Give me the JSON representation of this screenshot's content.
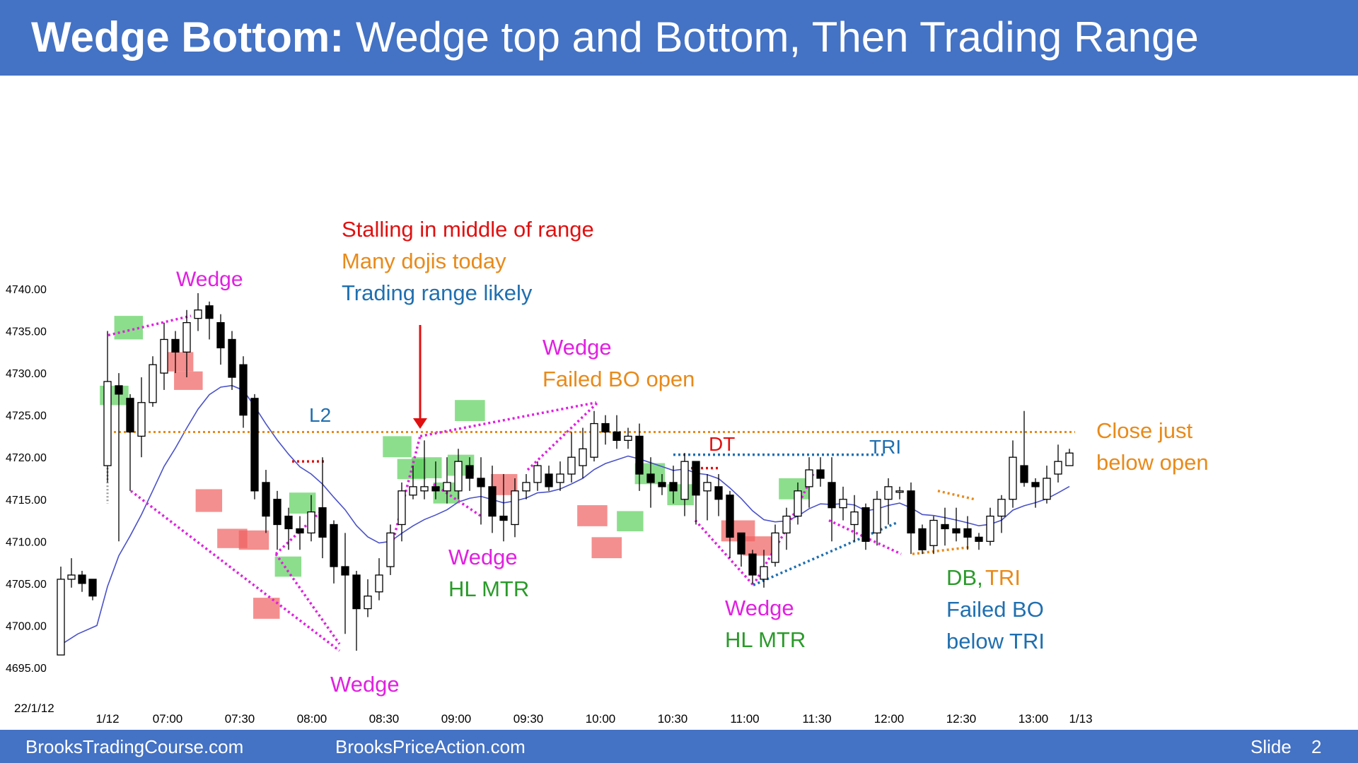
{
  "title": {
    "bold": "Wedge Bottom:",
    "rest": " Wedge top and Bottom, Then Trading Range"
  },
  "footer": {
    "left": "BrooksTradingCourse.com",
    "middle": "BrooksPriceAction.com",
    "slide_label": "Slide",
    "slide_number": "2"
  },
  "colors": {
    "banner": "#4472c4",
    "bull_highlight": "#5bd05b",
    "bear_highlight": "#f06060",
    "wedge": "#e020e0",
    "orange": "#e88a1a",
    "blue": "#1f6fb0",
    "ema": "#4a52c8"
  },
  "chart_data": {
    "type": "candlestick",
    "date_label": "22/1/12",
    "y_ticks": [
      "4740.00",
      "4735.00",
      "4730.00",
      "4725.00",
      "4720.00",
      "4715.00",
      "4710.00",
      "4705.00",
      "4700.00",
      "4695.00"
    ],
    "x_ticks": [
      {
        "label": "1/12",
        "bar": 0.5
      },
      {
        "label": "07:00",
        "bar": 6
      },
      {
        "label": "07:30",
        "bar": 12
      },
      {
        "label": "08:00",
        "bar": 18
      },
      {
        "label": "08:30",
        "bar": 24
      },
      {
        "label": "09:00",
        "bar": 30
      },
      {
        "label": "09:30",
        "bar": 36
      },
      {
        "label": "10:00",
        "bar": 42
      },
      {
        "label": "10:30",
        "bar": 48
      },
      {
        "label": "11:00",
        "bar": 54
      },
      {
        "label": "11:30",
        "bar": 60
      },
      {
        "label": "12:00",
        "bar": 66
      },
      {
        "label": "12:30",
        "bar": 72
      },
      {
        "label": "13:00",
        "bar": 78
      },
      {
        "label": "1/13",
        "bar": 82
      }
    ],
    "ylim": [
      4694,
      4743
    ],
    "open_price": 4723.0,
    "prior_day": [
      [
        4696.5,
        4705.5,
        4707,
        4696.5
      ],
      [
        4705.5,
        4706,
        4708,
        4704.5
      ],
      [
        4706,
        4705,
        4706.5,
        4704
      ],
      [
        4705.5,
        4703.5,
        4705.5,
        4703
      ]
    ],
    "bars": [
      [
        4719,
        4729,
        4735,
        4717
      ],
      [
        4728.5,
        4727.5,
        4730,
        4710
      ],
      [
        4727,
        4723,
        4727.5,
        4716
      ],
      [
        4722.5,
        4726.5,
        4729.5,
        4720
      ],
      [
        4726.5,
        4731,
        4732,
        4726
      ],
      [
        4730,
        4734,
        4736,
        4728
      ],
      [
        4734,
        4732.5,
        4735,
        4730
      ],
      [
        4732.5,
        4736,
        4737.5,
        4729.5
      ],
      [
        4736.5,
        4737.5,
        4739.5,
        4735
      ],
      [
        4738,
        4736.5,
        4738.5,
        4734
      ],
      [
        4736,
        4733,
        4737,
        4731
      ],
      [
        4734,
        4729.5,
        4735,
        4728
      ],
      [
        4731,
        4725,
        4732,
        4723.5
      ],
      [
        4727,
        4716,
        4727.5,
        4715
      ],
      [
        4717,
        4713,
        4718.5,
        4711
      ],
      [
        4715,
        4712,
        4716,
        4709
      ],
      [
        4713,
        4711.5,
        4714,
        4709
      ],
      [
        4711.5,
        4711,
        4713,
        4709
      ],
      [
        4711,
        4713.5,
        4715.5,
        4710
      ],
      [
        4714,
        4710.5,
        4720,
        4708
      ],
      [
        4712,
        4707,
        4712.5,
        4705
      ],
      [
        4707,
        4706,
        4711,
        4699
      ],
      [
        4706,
        4702,
        4706.5,
        4697
      ],
      [
        4702,
        4703.5,
        4705.5,
        4701
      ],
      [
        4704,
        4706,
        4708,
        4703
      ],
      [
        4707,
        4711,
        4712,
        4706
      ],
      [
        4712,
        4716,
        4717,
        4710
      ],
      [
        4715.5,
        4716.5,
        4719,
        4715
      ],
      [
        4716,
        4716.5,
        4722,
        4715
      ],
      [
        4716.5,
        4716,
        4719.5,
        4715
      ],
      [
        4716,
        4717,
        4720,
        4714.5
      ],
      [
        4716,
        4719.5,
        4721,
        4715
      ],
      [
        4719,
        4717.5,
        4720,
        4716
      ],
      [
        4717.5,
        4716.5,
        4720,
        4712
      ],
      [
        4716.5,
        4713,
        4719,
        4711
      ],
      [
        4713,
        4712.5,
        4718,
        4710
      ],
      [
        4712,
        4716,
        4717.5,
        4710.5
      ],
      [
        4716,
        4717,
        4718,
        4715
      ],
      [
        4717,
        4719,
        4719.5,
        4716
      ],
      [
        4718,
        4716.5,
        4719,
        4716
      ],
      [
        4717,
        4718,
        4719.5,
        4716
      ],
      [
        4718,
        4720,
        4723,
        4717
      ],
      [
        4719,
        4721,
        4723.5,
        4717.5
      ],
      [
        4720,
        4724,
        4725.5,
        4719.5
      ],
      [
        4724,
        4723,
        4725,
        4721.5
      ],
      [
        4723,
        4722,
        4725,
        4721
      ],
      [
        4722,
        4722.5,
        4723.5,
        4721
      ],
      [
        4722.5,
        4718,
        4724,
        4716
      ],
      [
        4718,
        4717,
        4720,
        4714
      ],
      [
        4717,
        4716.5,
        4718,
        4715.5
      ],
      [
        4717,
        4716,
        4719,
        4714.5
      ],
      [
        4715,
        4719.5,
        4720.5,
        4713
      ],
      [
        4719.5,
        4715.5,
        4719.5,
        4712
      ],
      [
        4716,
        4717,
        4718,
        4712.5
      ],
      [
        4716.5,
        4715,
        4718,
        4713
      ],
      [
        4715.5,
        4710.5,
        4716,
        4708
      ],
      [
        4711,
        4708.5,
        4711,
        4707
      ],
      [
        4708.5,
        4706,
        4709,
        4705
      ],
      [
        4705.5,
        4707,
        4709,
        4704.5
      ],
      [
        4707.5,
        4711,
        4712,
        4707
      ],
      [
        4711,
        4713,
        4714,
        4709
      ],
      [
        4713,
        4716,
        4717,
        4712
      ],
      [
        4716.5,
        4718.5,
        4720,
        4714
      ],
      [
        4718.5,
        4717.5,
        4720,
        4716.5
      ],
      [
        4717,
        4714,
        4720,
        4710
      ],
      [
        4714,
        4715,
        4716.5,
        4712.5
      ],
      [
        4712,
        4713.5,
        4715.5,
        4710
      ],
      [
        4714,
        4710,
        4714.5,
        4709
      ],
      [
        4711,
        4715,
        4716,
        4709.5
      ],
      [
        4715,
        4716.5,
        4717.5,
        4712
      ],
      [
        4716,
        4716,
        4716.5,
        4715
      ],
      [
        4716,
        4711,
        4717,
        4708.5
      ],
      [
        4711.5,
        4709,
        4712,
        4708.5
      ],
      [
        4709.5,
        4712.5,
        4713,
        4708.5
      ],
      [
        4712,
        4711.5,
        4714,
        4709.5
      ],
      [
        4711.5,
        4711,
        4714,
        4710
      ],
      [
        4711.5,
        4710.5,
        4713,
        4709
      ],
      [
        4710.5,
        4710,
        4711,
        4709
      ],
      [
        4710,
        4713,
        4714,
        4709.5
      ],
      [
        4713,
        4715,
        4715.5,
        4711
      ],
      [
        4715,
        4720,
        4722,
        4714
      ],
      [
        4719,
        4717,
        4725.5,
        4716.5
      ],
      [
        4717,
        4716.5,
        4717.5,
        4714
      ],
      [
        4715,
        4717.5,
        4719,
        4714.5
      ],
      [
        4718,
        4719.5,
        4721.5,
        4717
      ],
      [
        4719,
        4720.5,
        4721,
        4719
      ]
    ],
    "annotations": [
      {
        "id": "wedge-top",
        "text": "Wedge",
        "color": "#e020e0"
      },
      {
        "id": "stalling",
        "text": "Stalling in middle of range",
        "color": "#e01010"
      },
      {
        "id": "dojis",
        "text": "Many dojis today",
        "color": "#e88a1a"
      },
      {
        "id": "tr-likely",
        "text": "Trading range likely",
        "color": "#1f6fb0"
      },
      {
        "id": "l2",
        "text": "L2",
        "color": "#1f6fb0"
      },
      {
        "id": "wedge-2",
        "text": "Wedge",
        "color": "#e020e0"
      },
      {
        "id": "failed-bo",
        "text": "Failed BO  open",
        "color": "#e88a1a"
      },
      {
        "id": "dt",
        "text": "DT",
        "color": "#e01010"
      },
      {
        "id": "tri",
        "text": "TRI",
        "color": "#1f6fb0"
      },
      {
        "id": "close-1",
        "text": "Close just",
        "color": "#e88a1a"
      },
      {
        "id": "close-2",
        "text": "below open",
        "color": "#e88a1a"
      },
      {
        "id": "wedge-3",
        "text": "Wedge",
        "color": "#e020e0"
      },
      {
        "id": "hl-mtr-1",
        "text": "HL MTR",
        "color": "#2a9a2a"
      },
      {
        "id": "wedge-4",
        "text": "Wedge",
        "color": "#e020e0"
      },
      {
        "id": "hl-mtr-2",
        "text": "HL MTR",
        "color": "#2a9a2a"
      },
      {
        "id": "db",
        "text": "DB,",
        "color": "#2a9a2a"
      },
      {
        "id": "db-tri",
        "text": " TRI",
        "color": "#e88a1a"
      },
      {
        "id": "failed-bo-2",
        "text": "Failed BO",
        "color": "#1f6fb0"
      },
      {
        "id": "below-tri",
        "text": "below TRI",
        "color": "#1f6fb0"
      },
      {
        "id": "wedge-bottom",
        "text": "Wedge",
        "color": "#e020e0"
      }
    ]
  }
}
